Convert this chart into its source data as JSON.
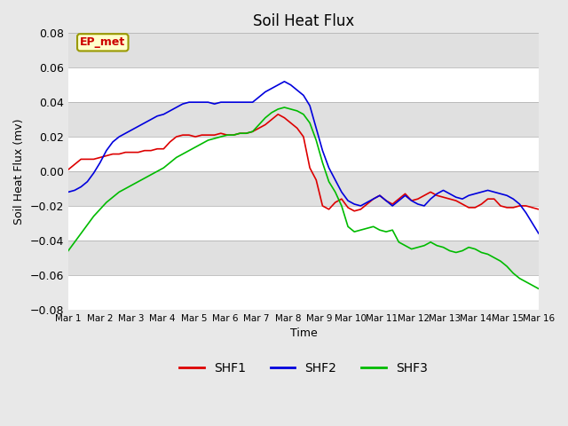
{
  "title": "Soil Heat Flux",
  "xlabel": "Time",
  "ylabel": "Soil Heat Flux (mv)",
  "ylim": [
    -0.08,
    0.08
  ],
  "yticks": [
    -0.08,
    -0.06,
    -0.04,
    -0.02,
    0.0,
    0.02,
    0.04,
    0.06,
    0.08
  ],
  "xtick_labels": [
    "Mar 1",
    "Mar 2",
    "Mar 3",
    "Mar 4",
    "Mar 5",
    "Mar 6",
    "Mar 7",
    "Mar 8",
    "Mar 9",
    "Mar 10",
    "Mar 11",
    "Mar 12",
    "Mar 13",
    "Mar 14",
    "Mar 15",
    "Mar 16"
  ],
  "legend_label": "EP_met",
  "series_colors": {
    "SHF1": "#dd0000",
    "SHF2": "#0000dd",
    "SHF3": "#00bb00"
  },
  "background_color": "#e0e0e0",
  "plot_bg_color": "#d8d8d8",
  "band_color_light": "#dcdcdc",
  "band_color_white": "#f0f0f0",
  "SHF1": [
    0.001,
    0.004,
    0.007,
    0.007,
    0.007,
    0.008,
    0.009,
    0.01,
    0.01,
    0.011,
    0.011,
    0.011,
    0.012,
    0.012,
    0.013,
    0.013,
    0.017,
    0.02,
    0.021,
    0.021,
    0.02,
    0.021,
    0.021,
    0.021,
    0.022,
    0.021,
    0.021,
    0.022,
    0.022,
    0.023,
    0.025,
    0.027,
    0.03,
    0.033,
    0.031,
    0.028,
    0.025,
    0.02,
    0.002,
    -0.005,
    -0.02,
    -0.022,
    -0.018,
    -0.016,
    -0.021,
    -0.023,
    -0.022,
    -0.019,
    -0.016,
    -0.014,
    -0.017,
    -0.019,
    -0.016,
    -0.013,
    -0.017,
    -0.016,
    -0.014,
    -0.012,
    -0.014,
    -0.015,
    -0.016,
    -0.017,
    -0.019,
    -0.021,
    -0.021,
    -0.019,
    -0.016,
    -0.016,
    -0.02,
    -0.021,
    -0.021,
    -0.02,
    -0.02,
    -0.021,
    -0.022
  ],
  "SHF2": [
    -0.012,
    -0.011,
    -0.009,
    -0.006,
    -0.001,
    0.005,
    0.012,
    0.017,
    0.02,
    0.022,
    0.024,
    0.026,
    0.028,
    0.03,
    0.032,
    0.033,
    0.035,
    0.037,
    0.039,
    0.04,
    0.04,
    0.04,
    0.04,
    0.039,
    0.04,
    0.04,
    0.04,
    0.04,
    0.04,
    0.04,
    0.043,
    0.046,
    0.048,
    0.05,
    0.052,
    0.05,
    0.047,
    0.044,
    0.038,
    0.025,
    0.012,
    0.002,
    -0.005,
    -0.012,
    -0.017,
    -0.019,
    -0.02,
    -0.018,
    -0.016,
    -0.014,
    -0.017,
    -0.02,
    -0.017,
    -0.014,
    -0.017,
    -0.019,
    -0.02,
    -0.016,
    -0.013,
    -0.011,
    -0.013,
    -0.015,
    -0.016,
    -0.014,
    -0.013,
    -0.012,
    -0.011,
    -0.012,
    -0.013,
    -0.014,
    -0.016,
    -0.019,
    -0.024,
    -0.03,
    -0.036
  ],
  "SHF3": [
    -0.046,
    -0.041,
    -0.036,
    -0.031,
    -0.026,
    -0.022,
    -0.018,
    -0.015,
    -0.012,
    -0.01,
    -0.008,
    -0.006,
    -0.004,
    -0.002,
    0.0,
    0.002,
    0.005,
    0.008,
    0.01,
    0.012,
    0.014,
    0.016,
    0.018,
    0.019,
    0.02,
    0.021,
    0.021,
    0.022,
    0.022,
    0.023,
    0.027,
    0.031,
    0.034,
    0.036,
    0.037,
    0.036,
    0.035,
    0.033,
    0.028,
    0.018,
    0.005,
    -0.006,
    -0.012,
    -0.02,
    -0.032,
    -0.035,
    -0.034,
    -0.033,
    -0.032,
    -0.034,
    -0.035,
    -0.034,
    -0.041,
    -0.043,
    -0.045,
    -0.044,
    -0.043,
    -0.041,
    -0.043,
    -0.044,
    -0.046,
    -0.047,
    -0.046,
    -0.044,
    -0.045,
    -0.047,
    -0.048,
    -0.05,
    -0.052,
    -0.055,
    -0.059,
    -0.062,
    -0.064,
    -0.066,
    -0.068
  ]
}
